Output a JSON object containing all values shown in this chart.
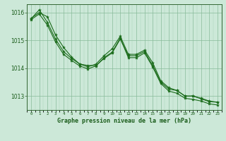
{
  "title": "Graphe pression niveau de la mer (hPa)",
  "xlabel_hours": [
    0,
    1,
    2,
    3,
    4,
    5,
    6,
    7,
    8,
    9,
    10,
    11,
    12,
    13,
    14,
    15,
    16,
    17,
    18,
    19,
    20,
    21,
    22,
    23
  ],
  "line1": [
    1015.8,
    1016.0,
    1015.85,
    1015.2,
    1014.75,
    1014.4,
    1014.15,
    1014.1,
    1014.1,
    1014.35,
    1014.55,
    1015.05,
    1014.45,
    1014.45,
    1014.6,
    1014.1,
    1013.5,
    1013.25,
    1013.2,
    1013.0,
    1013.0,
    1012.9,
    1012.8,
    1012.78
  ],
  "line2": [
    1015.78,
    1016.1,
    1015.65,
    1015.05,
    1014.6,
    1014.35,
    1014.15,
    1014.05,
    1014.15,
    1014.45,
    1014.7,
    1015.15,
    1014.5,
    1014.5,
    1014.65,
    1014.2,
    1013.55,
    1013.3,
    1013.2,
    1013.0,
    1013.0,
    1012.92,
    1012.82,
    1012.78
  ],
  "line3": [
    1015.75,
    1015.95,
    1015.55,
    1014.95,
    1014.5,
    1014.28,
    1014.08,
    1013.98,
    1014.08,
    1014.38,
    1014.58,
    1015.08,
    1014.38,
    1014.38,
    1014.55,
    1014.05,
    1013.45,
    1013.18,
    1013.1,
    1012.92,
    1012.88,
    1012.82,
    1012.72,
    1012.68
  ],
  "line_color1": "#1a6b1a",
  "line_color2": "#1a6b1a",
  "line_color3": "#1a6b1a",
  "bg_color": "#cce8d8",
  "grid_color_major": "#88bb99",
  "grid_color_minor": "#aad4bb",
  "label_color": "#1a5c1a",
  "spine_color": "#336633",
  "ylim": [
    1012.5,
    1016.3
  ],
  "yticks": [
    1013,
    1014,
    1015,
    1016
  ],
  "figsize": [
    3.2,
    2.0
  ],
  "dpi": 100
}
